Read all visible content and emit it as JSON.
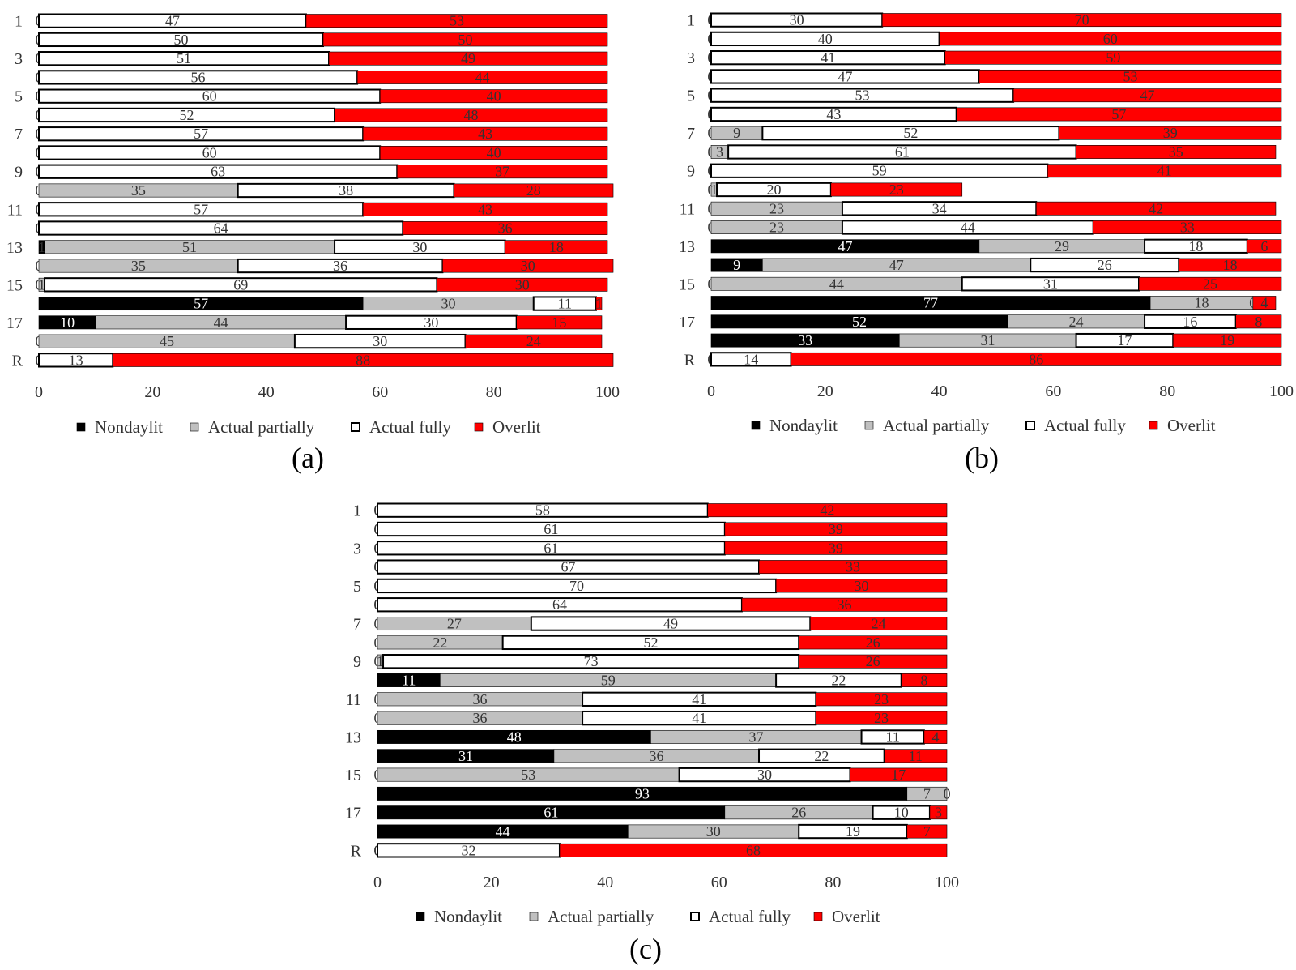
{
  "legend": [
    {
      "name": "Nondaylit",
      "color": "#000000"
    },
    {
      "name": "Actual partially",
      "color": "#c0c0c0"
    },
    {
      "name": "Actual fully",
      "color": "#ffffff"
    },
    {
      "name": "Overlit",
      "color": "#ff0000"
    }
  ],
  "chart_data": [
    {
      "type": "bar",
      "stacked": true,
      "orientation": "horizontal",
      "panel_label": "(a)",
      "categories": [
        "1",
        "2",
        "3",
        "4",
        "5",
        "6",
        "7",
        "8",
        "9",
        "10",
        "11",
        "12",
        "13",
        "14",
        "15",
        "16",
        "17",
        "18",
        "R"
      ],
      "category_labels": [
        "1",
        "",
        "3",
        "",
        "5",
        "",
        "7",
        "",
        "9",
        "",
        "11",
        "",
        "13",
        "",
        "15",
        "",
        "17",
        "",
        "R"
      ],
      "series": [
        {
          "name": "Nondaylit",
          "values": [
            0,
            0,
            0,
            0,
            0,
            0,
            0,
            0,
            0,
            0,
            0,
            0,
            1,
            0,
            0,
            57,
            10,
            0,
            0
          ]
        },
        {
          "name": "Actual partially",
          "values": [
            0,
            0,
            0,
            0,
            0,
            0,
            0,
            0,
            0,
            35,
            0,
            0,
            51,
            35,
            1,
            30,
            44,
            45,
            0
          ]
        },
        {
          "name": "Actual fully",
          "values": [
            47,
            50,
            51,
            56,
            60,
            52,
            57,
            60,
            63,
            38,
            57,
            64,
            30,
            36,
            69,
            11,
            30,
            30,
            13
          ]
        },
        {
          "name": "Overlit",
          "values": [
            53,
            50,
            49,
            44,
            40,
            48,
            43,
            40,
            37,
            28,
            43,
            36,
            18,
            30,
            30,
            1,
            15,
            24,
            88
          ]
        }
      ],
      "xticks": [
        0,
        20,
        40,
        60,
        80,
        100
      ],
      "xlim": [
        0,
        100
      ]
    },
    {
      "type": "bar",
      "stacked": true,
      "orientation": "horizontal",
      "panel_label": "(b)",
      "categories": [
        "1",
        "2",
        "3",
        "4",
        "5",
        "6",
        "7",
        "8",
        "9",
        "10",
        "11",
        "12",
        "13",
        "14",
        "15",
        "16",
        "17",
        "18",
        "R"
      ],
      "category_labels": [
        "1",
        "",
        "3",
        "",
        "5",
        "",
        "7",
        "",
        "9",
        "",
        "11",
        "",
        "13",
        "",
        "15",
        "",
        "17",
        "",
        "R"
      ],
      "series": [
        {
          "name": "Nondaylit",
          "values": [
            0,
            0,
            0,
            0,
            0,
            0,
            0,
            0,
            0,
            0,
            0,
            0,
            47,
            9,
            0,
            77,
            52,
            33,
            0
          ]
        },
        {
          "name": "Actual partially",
          "values": [
            0,
            0,
            0,
            0,
            0,
            0,
            9,
            3,
            0,
            1,
            23,
            23,
            29,
            47,
            44,
            18,
            24,
            31,
            0
          ]
        },
        {
          "name": "Actual fully",
          "values": [
            30,
            40,
            41,
            47,
            53,
            43,
            52,
            61,
            59,
            20,
            34,
            44,
            18,
            26,
            31,
            0,
            16,
            17,
            14
          ]
        },
        {
          "name": "Overlit",
          "values": [
            70,
            60,
            59,
            53,
            47,
            57,
            39,
            35,
            41,
            23,
            42,
            33,
            6,
            18,
            25,
            4,
            8,
            19,
            86
          ]
        }
      ],
      "xticks": [
        0,
        20,
        40,
        60,
        80,
        100
      ],
      "xlim": [
        0,
        100
      ]
    },
    {
      "type": "bar",
      "stacked": true,
      "orientation": "horizontal",
      "panel_label": "(c)",
      "categories": [
        "1",
        "2",
        "3",
        "4",
        "5",
        "6",
        "7",
        "8",
        "9",
        "10",
        "11",
        "12",
        "13",
        "14",
        "15",
        "16",
        "17",
        "18",
        "R"
      ],
      "category_labels": [
        "1",
        "",
        "3",
        "",
        "5",
        "",
        "7",
        "",
        "9",
        "",
        "11",
        "",
        "13",
        "",
        "15",
        "",
        "17",
        "",
        "R"
      ],
      "series": [
        {
          "name": "Nondaylit",
          "values": [
            0,
            0,
            0,
            0,
            0,
            0,
            0,
            0,
            0,
            11,
            0,
            0,
            48,
            31,
            0,
            93,
            61,
            44,
            0
          ]
        },
        {
          "name": "Actual partially",
          "values": [
            0,
            0,
            0,
            0,
            0,
            0,
            27,
            22,
            1,
            59,
            36,
            36,
            37,
            36,
            53,
            7,
            26,
            30,
            0
          ]
        },
        {
          "name": "Actual fully",
          "values": [
            58,
            61,
            61,
            67,
            70,
            64,
            49,
            52,
            73,
            22,
            41,
            41,
            11,
            22,
            30,
            0,
            10,
            19,
            32
          ]
        },
        {
          "name": "Overlit",
          "values": [
            42,
            39,
            39,
            33,
            30,
            36,
            24,
            26,
            26,
            8,
            23,
            23,
            4,
            11,
            17,
            0,
            3,
            7,
            68
          ]
        }
      ],
      "xticks": [
        0,
        20,
        40,
        60,
        80,
        100
      ],
      "xlim": [
        0,
        100
      ]
    }
  ]
}
